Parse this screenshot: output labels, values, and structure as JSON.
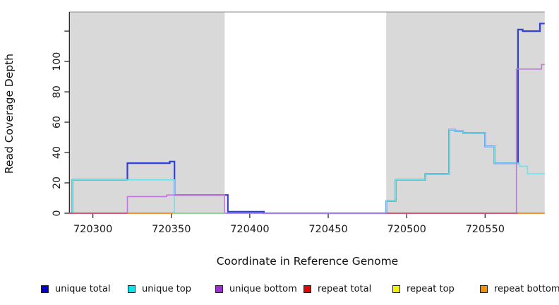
{
  "chart_data": {
    "type": "line",
    "subtype": "step-coverage",
    "title": "",
    "xlabel": "Coordinate in Reference Genome",
    "ylabel": "Read Coverage Depth",
    "xlim": [
      720285,
      720588
    ],
    "ylim": [
      0,
      132.6
    ],
    "x_ticks": [
      720300,
      720350,
      720400,
      720450,
      720500,
      720550
    ],
    "y_ticks_labeled": [
      0,
      20,
      40,
      60,
      80,
      100
    ],
    "y_ticks_unlabeled": [
      120
    ],
    "grid": false,
    "legend_position": "bottom",
    "shade_color": "#d9d9d9",
    "shaded_regions": [
      {
        "x1": 720285,
        "x2": 720384
      },
      {
        "x1": 720487,
        "x2": 720588
      }
    ],
    "series": [
      {
        "name": "unique total",
        "legend_color": "#0000cc",
        "line_color": "#3040d8",
        "line_width": 2.2,
        "steps": [
          [
            720285,
            720287,
            0
          ],
          [
            720287,
            720322,
            22
          ],
          [
            720322,
            720349,
            33
          ],
          [
            720349,
            720352,
            34
          ],
          [
            720352,
            720386,
            12
          ],
          [
            720386,
            720409,
            1
          ],
          [
            720409,
            720487,
            0
          ],
          [
            720487,
            720493,
            8
          ],
          [
            720493,
            720512,
            22
          ],
          [
            720512,
            720527,
            26
          ],
          [
            720527,
            720531,
            55
          ],
          [
            720531,
            720536,
            54
          ],
          [
            720536,
            720550,
            53
          ],
          [
            720550,
            720556,
            44
          ],
          [
            720556,
            720571,
            33
          ],
          [
            720571,
            720574,
            121
          ],
          [
            720574,
            720585,
            120
          ],
          [
            720585,
            720588,
            125
          ]
        ]
      },
      {
        "name": "unique top",
        "legend_color": "#00e5ee",
        "line_color": "#6ae4ec",
        "line_width": 1.6,
        "steps": [
          [
            720285,
            720287,
            0
          ],
          [
            720287,
            720352,
            22
          ],
          [
            720352,
            720487,
            0
          ],
          [
            720487,
            720493,
            8
          ],
          [
            720493,
            720512,
            22
          ],
          [
            720512,
            720527,
            26
          ],
          [
            720527,
            720531,
            55
          ],
          [
            720531,
            720536,
            54
          ],
          [
            720536,
            720550,
            53
          ],
          [
            720550,
            720556,
            44
          ],
          [
            720556,
            720572,
            33
          ],
          [
            720572,
            720577,
            31
          ],
          [
            720577,
            720588,
            26
          ]
        ]
      },
      {
        "name": "unique bottom",
        "legend_color": "#9b30d0",
        "line_color": "#c177e3",
        "line_width": 1.6,
        "steps": [
          [
            720285,
            720322,
            0
          ],
          [
            720322,
            720347,
            11
          ],
          [
            720347,
            720384,
            12
          ],
          [
            720384,
            720570,
            0
          ],
          [
            720570,
            720586,
            95
          ],
          [
            720586,
            720588,
            98
          ]
        ]
      },
      {
        "name": "repeat total",
        "legend_color": "#e60000",
        "line_color": "#d84f68",
        "line_width": 1.8,
        "zero_segments": [
          [
            720285,
            720322
          ],
          [
            720487,
            720571
          ]
        ]
      },
      {
        "name": "repeat top",
        "legend_color": "#f2f200",
        "line_color": "#8fd48f",
        "line_width": 1.8,
        "zero_segments": [
          [
            720351,
            720384
          ]
        ]
      },
      {
        "name": "repeat bottom",
        "legend_color": "#f29100",
        "line_color": "#ff8c1a",
        "line_width": 1.8,
        "zero_segments": [
          [
            720322,
            720351
          ],
          [
            720571,
            720588
          ]
        ]
      }
    ]
  },
  "axis": {
    "x_title": "Coordinate in Reference Genome",
    "y_title": "Read Coverage Depth"
  },
  "legend": {
    "items": [
      {
        "label": "unique total",
        "color": "#0000cc"
      },
      {
        "label": "unique top",
        "color": "#00e5ee"
      },
      {
        "label": "unique bottom",
        "color": "#9b30d0"
      },
      {
        "label": "repeat total",
        "color": "#e60000"
      },
      {
        "label": "repeat top",
        "color": "#f2f200"
      },
      {
        "label": "repeat bottom",
        "color": "#f29100"
      }
    ]
  }
}
